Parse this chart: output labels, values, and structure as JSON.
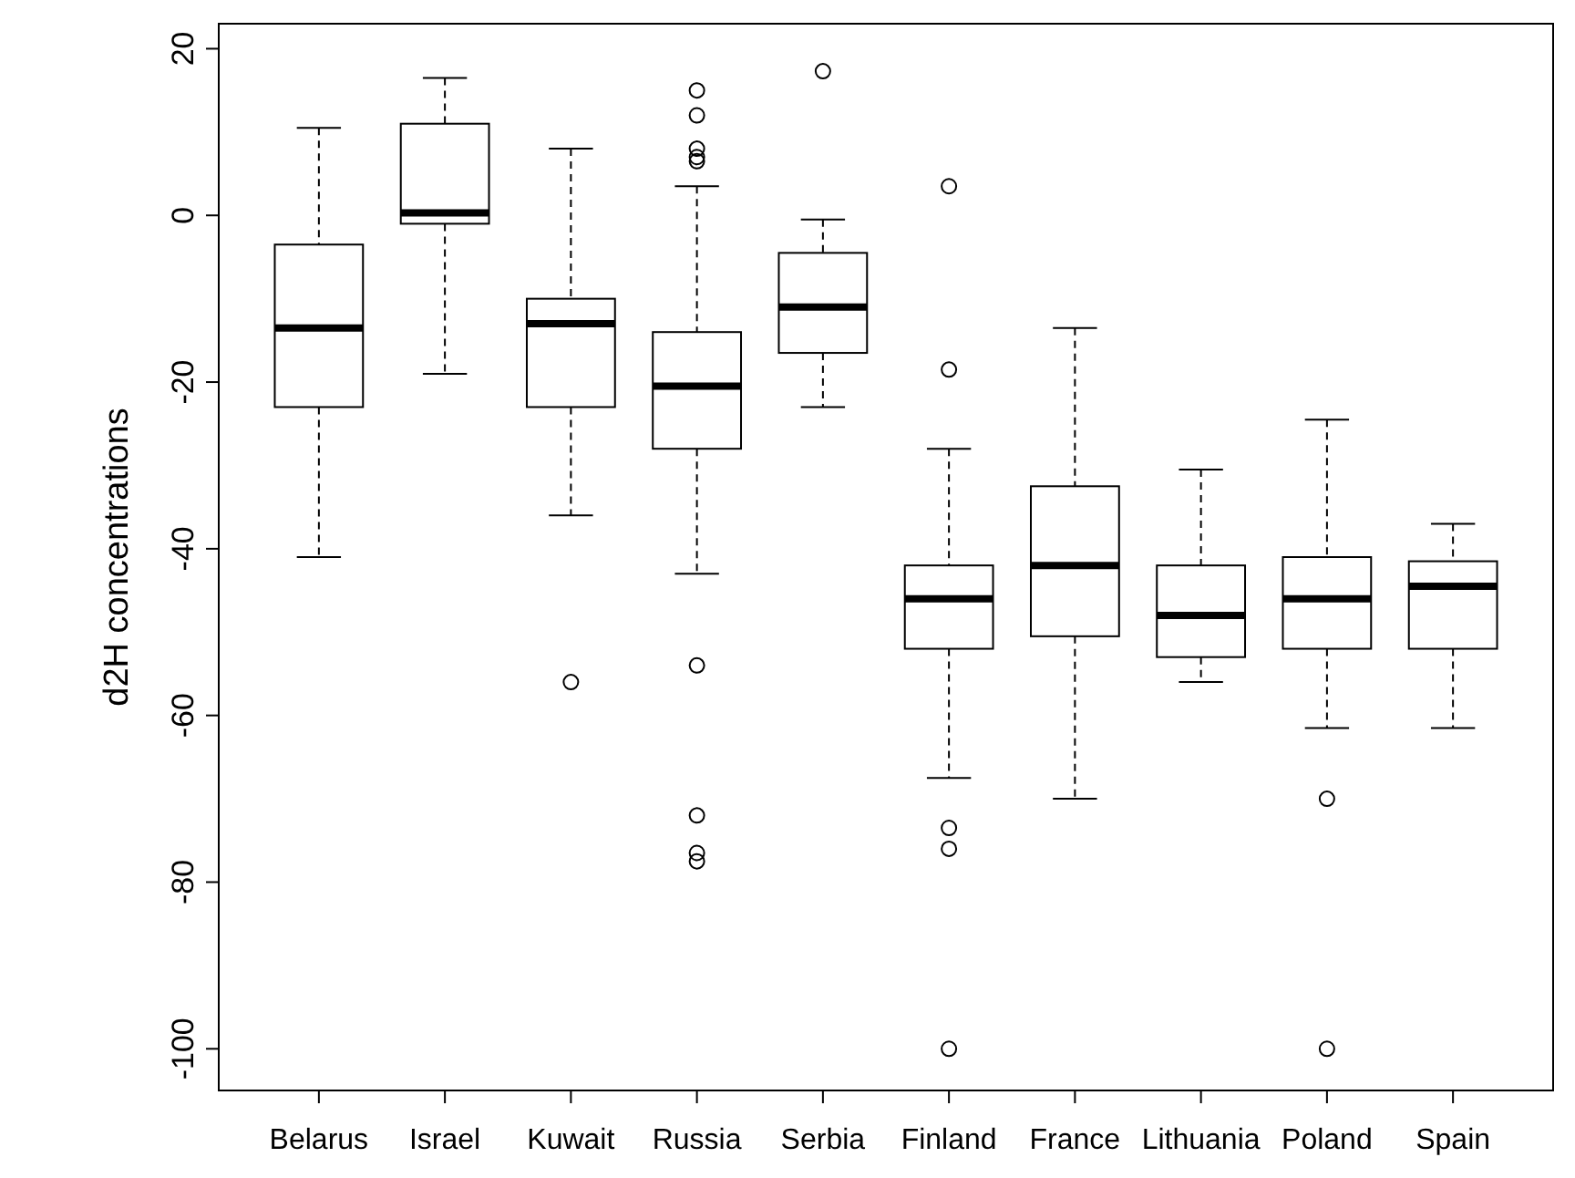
{
  "chart_data": {
    "type": "box",
    "ylabel": "d2H concentrations",
    "categories": [
      "Belarus",
      "Israel",
      "Kuwait",
      "Russia",
      "Serbia",
      "Finland",
      "France",
      "Lithuania",
      "Poland",
      "Spain"
    ],
    "boxes": [
      {
        "low": -41,
        "q1": -23,
        "median": -13.5,
        "q3": -3.5,
        "high": 10.5
      },
      {
        "low": -19,
        "q1": -1,
        "median": 0.3,
        "q3": 11,
        "high": 16.5
      },
      {
        "low": -36,
        "q1": -23,
        "median": -13,
        "q3": -10,
        "high": 8,
        "outliers": [
          -56
        ]
      },
      {
        "low": -43,
        "q1": -28,
        "median": -20.5,
        "q3": -14,
        "high": 3.5,
        "outliers": [
          15,
          12,
          8,
          7,
          6.5,
          -54,
          -72,
          -76.5,
          -77.5
        ]
      },
      {
        "low": -23,
        "q1": -16.5,
        "median": -11,
        "q3": -4.5,
        "high": -0.5,
        "outliers": [
          17.3
        ]
      },
      {
        "low": -67.5,
        "q1": -52,
        "median": -46,
        "q3": -42,
        "high": -28,
        "outliers": [
          3.5,
          -18.5,
          -73.5,
          -76,
          -100
        ]
      },
      {
        "low": -70,
        "q1": -50.5,
        "median": -42,
        "q3": -32.5,
        "high": -13.5
      },
      {
        "low": -56,
        "q1": -53,
        "median": -48,
        "q3": -42,
        "high": -30.5
      },
      {
        "low": -61.5,
        "q1": -52,
        "median": -46,
        "q3": -41,
        "high": -24.5,
        "outliers": [
          -70,
          -100
        ]
      },
      {
        "low": -61.5,
        "q1": -52,
        "median": -44.5,
        "q3": -41.5,
        "high": -37
      }
    ],
    "ylim": [
      -105,
      23
    ],
    "yticks": [
      -100,
      -80,
      -60,
      -40,
      -20,
      0,
      20
    ],
    "grid": false
  }
}
